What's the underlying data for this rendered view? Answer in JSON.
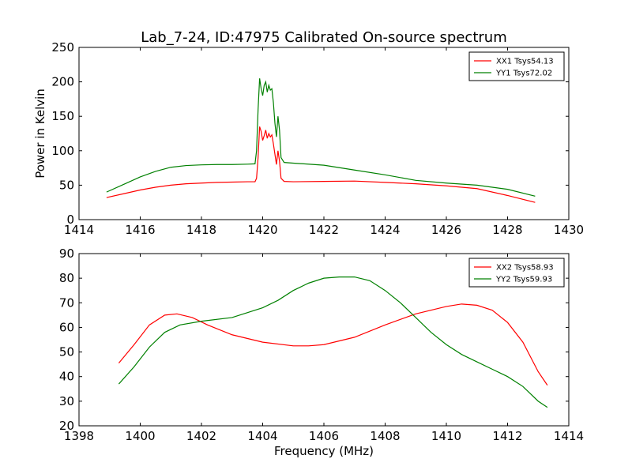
{
  "figure_title": "Lab_7-24, ID:47975 Calibrated On-source spectrum",
  "chart_data": [
    {
      "type": "line",
      "title": "Lab_7-24, ID:47975 Calibrated On-source spectrum",
      "xlabel": "",
      "ylabel": "Power in Kelvin",
      "xlim": [
        1414,
        1430
      ],
      "ylim": [
        0,
        250
      ],
      "xticks": [
        1414,
        1416,
        1418,
        1420,
        1422,
        1424,
        1426,
        1428,
        1430
      ],
      "yticks": [
        0,
        50,
        100,
        150,
        200,
        250
      ],
      "grid": false,
      "legend_position": "top-right",
      "series": [
        {
          "name": "XX1 Tsys54.13",
          "color": "#ff0000",
          "points": [
            [
              1414.9,
              32
            ],
            [
              1415.5,
              38
            ],
            [
              1416,
              43
            ],
            [
              1416.5,
              47
            ],
            [
              1417,
              50
            ],
            [
              1417.5,
              52
            ],
            [
              1418,
              53
            ],
            [
              1418.5,
              54
            ],
            [
              1419,
              54.5
            ],
            [
              1419.5,
              55
            ],
            [
              1419.75,
              55
            ],
            [
              1419.8,
              60
            ],
            [
              1419.85,
              90
            ],
            [
              1419.9,
              135
            ],
            [
              1419.95,
              128
            ],
            [
              1420.0,
              115
            ],
            [
              1420.05,
              122
            ],
            [
              1420.1,
              130
            ],
            [
              1420.15,
              118
            ],
            [
              1420.2,
              125
            ],
            [
              1420.25,
              120
            ],
            [
              1420.3,
              123
            ],
            [
              1420.35,
              110
            ],
            [
              1420.4,
              95
            ],
            [
              1420.45,
              80
            ],
            [
              1420.5,
              100
            ],
            [
              1420.55,
              85
            ],
            [
              1420.6,
              60
            ],
            [
              1420.7,
              55.5
            ],
            [
              1421,
              55
            ],
            [
              1422,
              55.5
            ],
            [
              1423,
              56
            ],
            [
              1424,
              54
            ],
            [
              1425,
              52
            ],
            [
              1426,
              49
            ],
            [
              1427,
              45
            ],
            [
              1428,
              35
            ],
            [
              1428.9,
              25
            ]
          ]
        },
        {
          "name": "YY1 Tsys72.02",
          "color": "#008000",
          "points": [
            [
              1414.9,
              40
            ],
            [
              1415.5,
              52
            ],
            [
              1416,
              62
            ],
            [
              1416.5,
              70
            ],
            [
              1417,
              76
            ],
            [
              1417.5,
              78.5
            ],
            [
              1418,
              79.5
            ],
            [
              1418.5,
              80
            ],
            [
              1419,
              80
            ],
            [
              1419.5,
              80.5
            ],
            [
              1419.75,
              81
            ],
            [
              1419.8,
              100
            ],
            [
              1419.85,
              160
            ],
            [
              1419.9,
              205
            ],
            [
              1419.95,
              190
            ],
            [
              1420.0,
              180
            ],
            [
              1420.05,
              195
            ],
            [
              1420.1,
              200
            ],
            [
              1420.15,
              185
            ],
            [
              1420.2,
              195
            ],
            [
              1420.25,
              188
            ],
            [
              1420.3,
              190
            ],
            [
              1420.35,
              170
            ],
            [
              1420.4,
              140
            ],
            [
              1420.45,
              120
            ],
            [
              1420.5,
              150
            ],
            [
              1420.55,
              130
            ],
            [
              1420.6,
              90
            ],
            [
              1420.7,
              83
            ],
            [
              1421,
              82
            ],
            [
              1422,
              79
            ],
            [
              1423,
              72
            ],
            [
              1424,
              65
            ],
            [
              1425,
              57
            ],
            [
              1426,
              53
            ],
            [
              1427,
              50
            ],
            [
              1428,
              44
            ],
            [
              1428.9,
              34
            ]
          ]
        }
      ]
    },
    {
      "type": "line",
      "title": "",
      "xlabel": "Frequency (MHz)",
      "ylabel": "",
      "xlim": [
        1398,
        1414
      ],
      "ylim": [
        20,
        90
      ],
      "xticks": [
        1398,
        1400,
        1402,
        1404,
        1406,
        1408,
        1410,
        1412,
        1414
      ],
      "yticks": [
        20,
        30,
        40,
        50,
        60,
        70,
        80,
        90
      ],
      "grid": false,
      "legend_position": "top-right",
      "series": [
        {
          "name": "XX2 Tsys58.93",
          "color": "#ff0000",
          "points": [
            [
              1399.3,
              45.5
            ],
            [
              1399.8,
              53
            ],
            [
              1400.3,
              61
            ],
            [
              1400.8,
              65
            ],
            [
              1401.2,
              65.5
            ],
            [
              1401.7,
              64
            ],
            [
              1402.2,
              61
            ],
            [
              1403,
              57
            ],
            [
              1404,
              54
            ],
            [
              1405,
              52.5
            ],
            [
              1405.5,
              52.5
            ],
            [
              1406,
              53
            ],
            [
              1407,
              56
            ],
            [
              1408,
              61
            ],
            [
              1409,
              65.5
            ],
            [
              1410,
              68.5
            ],
            [
              1410.5,
              69.5
            ],
            [
              1411,
              69
            ],
            [
              1411.5,
              67
            ],
            [
              1412,
              62
            ],
            [
              1412.5,
              54
            ],
            [
              1413,
              42
            ],
            [
              1413.3,
              36.5
            ]
          ]
        },
        {
          "name": "YY2 Tsys59.93",
          "color": "#008000",
          "points": [
            [
              1399.3,
              37
            ],
            [
              1399.8,
              44
            ],
            [
              1400.3,
              52
            ],
            [
              1400.8,
              58
            ],
            [
              1401.3,
              61
            ],
            [
              1402,
              62.5
            ],
            [
              1403,
              64
            ],
            [
              1404,
              68
            ],
            [
              1404.5,
              71
            ],
            [
              1405,
              75
            ],
            [
              1405.5,
              78
            ],
            [
              1406,
              80
            ],
            [
              1406.5,
              80.5
            ],
            [
              1407,
              80.5
            ],
            [
              1407.5,
              79
            ],
            [
              1408,
              75
            ],
            [
              1408.5,
              70
            ],
            [
              1409,
              64
            ],
            [
              1409.5,
              58
            ],
            [
              1410,
              53
            ],
            [
              1410.5,
              49
            ],
            [
              1411,
              46
            ],
            [
              1411.5,
              43
            ],
            [
              1412,
              40
            ],
            [
              1412.5,
              36
            ],
            [
              1413,
              30
            ],
            [
              1413.3,
              27.5
            ]
          ]
        }
      ]
    }
  ]
}
